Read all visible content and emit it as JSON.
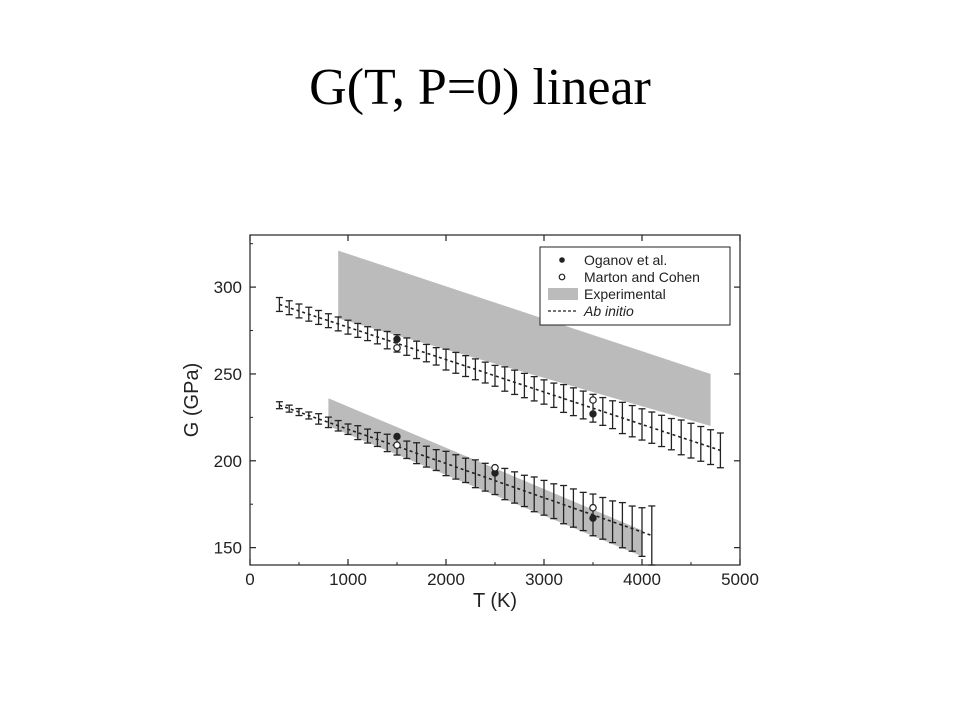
{
  "slide": {
    "title": "G(T, P=0) linear"
  },
  "chart_data": {
    "type": "line",
    "title": "",
    "xlabel": "T (K)",
    "ylabel": "G (GPa)",
    "xlim": [
      0,
      5000
    ],
    "ylim": [
      140,
      330
    ],
    "xticks": [
      0,
      1000,
      2000,
      3000,
      4000,
      5000
    ],
    "yticks": [
      150,
      200,
      250,
      300
    ],
    "legend_position": "top-right",
    "legend": [
      {
        "label": "Oganov et al.",
        "marker": "filled-circle"
      },
      {
        "label": "Marton and Cohen",
        "marker": "open-circle"
      },
      {
        "label": "Experimental",
        "marker": "gray-band"
      },
      {
        "label": "Ab initio",
        "marker": "dashed-line"
      }
    ],
    "series": [
      {
        "name": "Ab initio",
        "branch": "upper",
        "x": [
          300,
          4800
        ],
        "y": [
          290,
          206
        ],
        "error_bar_x": [
          300,
          400,
          500,
          600,
          700,
          800,
          900,
          1000,
          1100,
          1200,
          1300,
          1400,
          1500,
          1600,
          1700,
          1800,
          1900,
          2000,
          2100,
          2200,
          2300,
          2400,
          2500,
          2600,
          2700,
          2800,
          2900,
          3000,
          3100,
          3200,
          3300,
          3400,
          3500,
          3600,
          3700,
          3800,
          3900,
          4000,
          4100,
          4200,
          4300,
          4400,
          4500,
          4600,
          4700,
          4800
        ],
        "error_bar_half_width": [
          4,
          4,
          4,
          4,
          4,
          4,
          4,
          4,
          4,
          4,
          4,
          5,
          5,
          5,
          5,
          5,
          5,
          6,
          6,
          6,
          6,
          6,
          6,
          7,
          7,
          7,
          7,
          7,
          7,
          8,
          8,
          8,
          8,
          8,
          8,
          9,
          9,
          9,
          9,
          9,
          9,
          10,
          10,
          10,
          10,
          10
        ]
      },
      {
        "name": "Ab initio",
        "branch": "lower",
        "x": [
          300,
          4100
        ],
        "y": [
          232,
          157
        ],
        "error_bar_x": [
          300,
          400,
          500,
          600,
          700,
          800,
          900,
          1000,
          1100,
          1200,
          1300,
          1400,
          1500,
          1600,
          1700,
          1800,
          1900,
          2000,
          2100,
          2200,
          2300,
          2400,
          2500,
          2600,
          2700,
          2800,
          2900,
          3000,
          3100,
          3200,
          3300,
          3400,
          3500,
          3600,
          3700,
          3800,
          3900,
          4000,
          4100
        ],
        "error_bar_half_width": [
          2,
          2,
          2,
          2,
          3,
          3,
          3,
          3,
          4,
          4,
          4,
          5,
          5,
          5,
          6,
          6,
          6,
          7,
          7,
          7,
          8,
          8,
          8,
          9,
          9,
          9,
          10,
          10,
          10,
          11,
          11,
          11,
          12,
          12,
          12,
          13,
          13,
          14,
          17
        ]
      },
      {
        "name": "Oganov et al.",
        "points": [
          {
            "x": 1500,
            "y": 270
          },
          {
            "x": 3500,
            "y": 227
          },
          {
            "x": 1500,
            "y": 214
          },
          {
            "x": 2500,
            "y": 193
          },
          {
            "x": 3500,
            "y": 167
          }
        ]
      },
      {
        "name": "Marton and Cohen",
        "points": [
          {
            "x": 1500,
            "y": 265
          },
          {
            "x": 3500,
            "y": 235
          },
          {
            "x": 1500,
            "y": 209
          },
          {
            "x": 2500,
            "y": 196
          },
          {
            "x": 3500,
            "y": 173
          }
        ]
      },
      {
        "name": "Experimental",
        "bands": [
          {
            "x": [
              900,
              4700
            ],
            "upper": [
              321,
              250
            ],
            "lower": [
              282,
              220
            ]
          },
          {
            "x": [
              800,
              4000
            ],
            "upper": [
              236,
              160
            ],
            "lower": [
              220,
              145
            ]
          }
        ]
      }
    ],
    "colors": {
      "band": "#bbbbbb",
      "ink": "#222222"
    }
  }
}
